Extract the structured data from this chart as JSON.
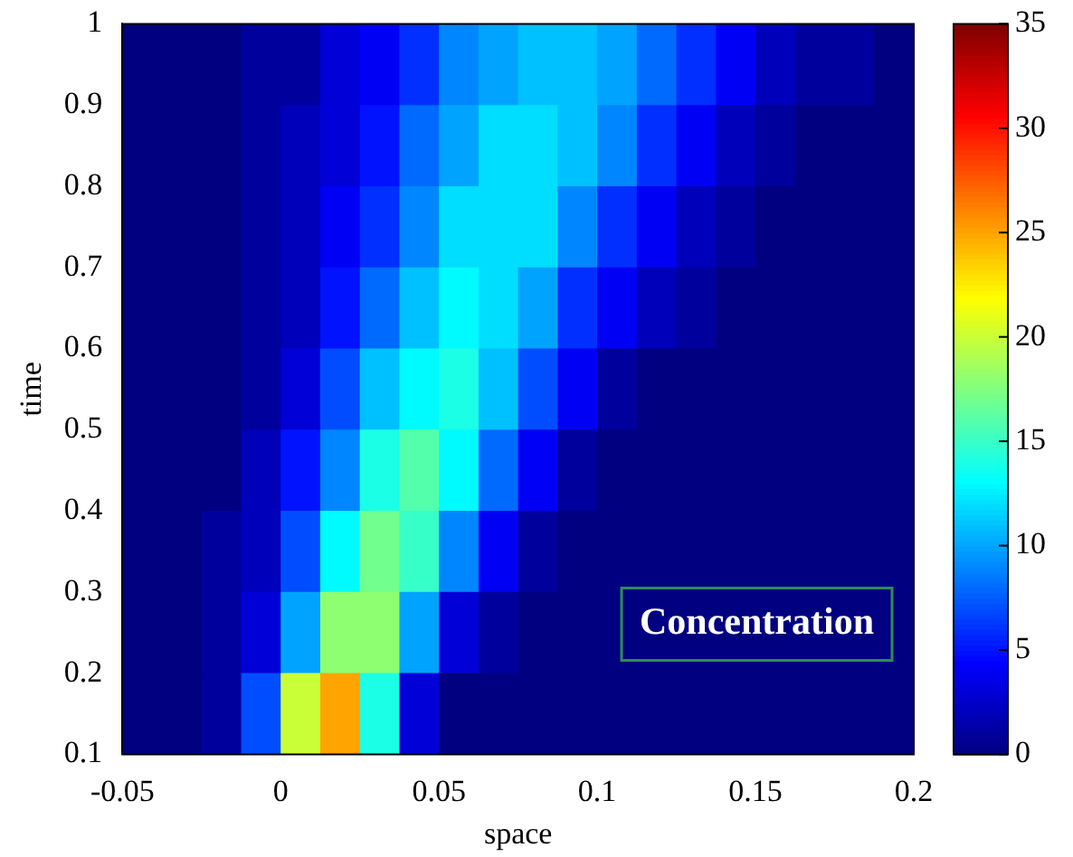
{
  "chart_data": {
    "type": "heatmap",
    "xlabel": "space",
    "ylabel": "time",
    "annotations": [
      "Concentration"
    ],
    "x": [
      -0.04375,
      -0.03125,
      -0.01875,
      -0.00625,
      0.00625,
      0.01875,
      0.03125,
      0.04375,
      0.05625,
      0.06875,
      0.08125,
      0.09375,
      0.10625,
      0.11875,
      0.13125,
      0.14375,
      0.15625,
      0.16875,
      0.18125,
      0.19375
    ],
    "y": [
      0.95,
      0.85,
      0.75,
      0.65,
      0.55,
      0.45,
      0.35,
      0.25,
      0.15
    ],
    "cells": [
      [
        0,
        0,
        0,
        1,
        1,
        3,
        4,
        6,
        9,
        10,
        11,
        11,
        10,
        8,
        6,
        4,
        2,
        1,
        1,
        0
      ],
      [
        0,
        0,
        0,
        1,
        2,
        3,
        5,
        8,
        10,
        12,
        12,
        11,
        9,
        6,
        4,
        2,
        1,
        0,
        0,
        0
      ],
      [
        0,
        0,
        0,
        1,
        2,
        4,
        6,
        9,
        12,
        12,
        12,
        9,
        6,
        4,
        2,
        1,
        0,
        0,
        0,
        0
      ],
      [
        0,
        0,
        0,
        1,
        2,
        5,
        8,
        11,
        13,
        12,
        10,
        6,
        4,
        2,
        1,
        0,
        0,
        0,
        0,
        0
      ],
      [
        0,
        0,
        0,
        1,
        3,
        7,
        11,
        13,
        14,
        11,
        7,
        4,
        1,
        0,
        0,
        0,
        0,
        0,
        0,
        0
      ],
      [
        0,
        0,
        0,
        2,
        5,
        9,
        14,
        16,
        13,
        8,
        4,
        1,
        0,
        0,
        0,
        0,
        0,
        0,
        0,
        0
      ],
      [
        0,
        0,
        1,
        2,
        7,
        13,
        17,
        15,
        9,
        4,
        1,
        0,
        0,
        0,
        0,
        0,
        0,
        0,
        0,
        0
      ],
      [
        0,
        0,
        1,
        3,
        10,
        18,
        18,
        10,
        3,
        1,
        0,
        0,
        0,
        0,
        0,
        0,
        0,
        0,
        0,
        0
      ],
      [
        0,
        0,
        1,
        7,
        20,
        25,
        14,
        3,
        0,
        0,
        0,
        0,
        0,
        0,
        0,
        0,
        0,
        0,
        0,
        0
      ]
    ],
    "xlim": [
      -0.05,
      0.2
    ],
    "xticks": [
      -0.05,
      0,
      0.05,
      0.1,
      0.15,
      0.2
    ],
    "ylim": [
      0.1,
      1
    ],
    "yticks": [
      0.1,
      0.2,
      0.3,
      0.4,
      0.5,
      0.6,
      0.7,
      0.8,
      0.9,
      1
    ],
    "clim": [
      0,
      35
    ],
    "cticks": [
      0,
      5,
      10,
      15,
      20,
      25,
      30,
      35
    ]
  }
}
